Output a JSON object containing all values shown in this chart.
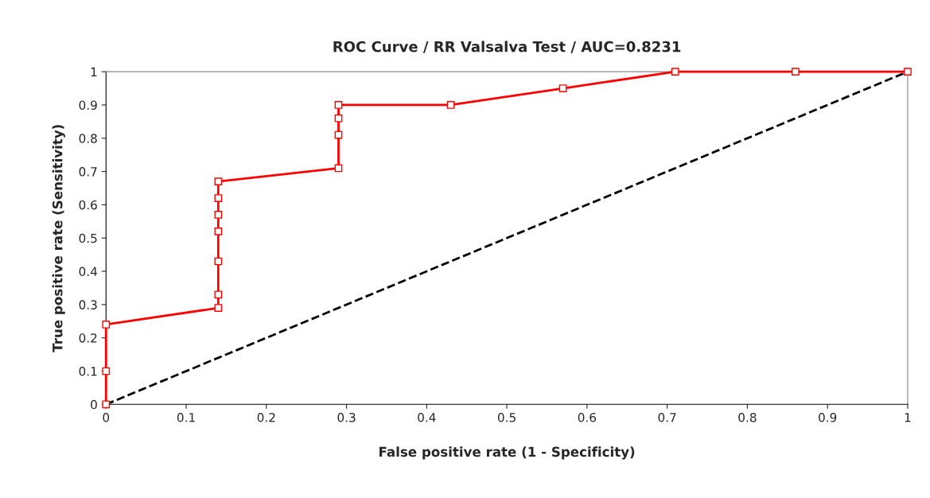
{
  "chart_data": {
    "type": "line",
    "title": "ROC Curve / RR Valsalva Test / AUC=0.8231",
    "xlabel": "False positive rate (1 - Specificity)",
    "ylabel": "True positive rate (Sensitivity)",
    "xlim": [
      0,
      1
    ],
    "ylim": [
      0,
      1
    ],
    "xticks": [
      0,
      0.1,
      0.2,
      0.3,
      0.4,
      0.5,
      0.6,
      0.7,
      0.8,
      0.9,
      1
    ],
    "yticks": [
      0,
      0.1,
      0.2,
      0.3,
      0.4,
      0.5,
      0.6,
      0.7,
      0.8,
      0.9,
      1
    ],
    "grid": false,
    "series": [
      {
        "color": "#ff0000",
        "marker": "square",
        "line_style": "solid",
        "x": [
          0,
          0,
          0,
          0.14,
          0.14,
          0.14,
          0.14,
          0.14,
          0.14,
          0.14,
          0.29,
          0.29,
          0.29,
          0.29,
          0.43,
          0.57,
          0.71,
          0.86,
          1
        ],
        "values": [
          0,
          0.1,
          0.24,
          0.29,
          0.33,
          0.43,
          0.52,
          0.57,
          0.62,
          0.67,
          0.71,
          0.81,
          0.86,
          0.9,
          0.9,
          0.95,
          1,
          1,
          1
        ]
      },
      {
        "color": "#000000",
        "marker": "none",
        "line_style": "dashed",
        "x": [
          0,
          1
        ],
        "values": [
          0,
          1
        ]
      }
    ]
  }
}
